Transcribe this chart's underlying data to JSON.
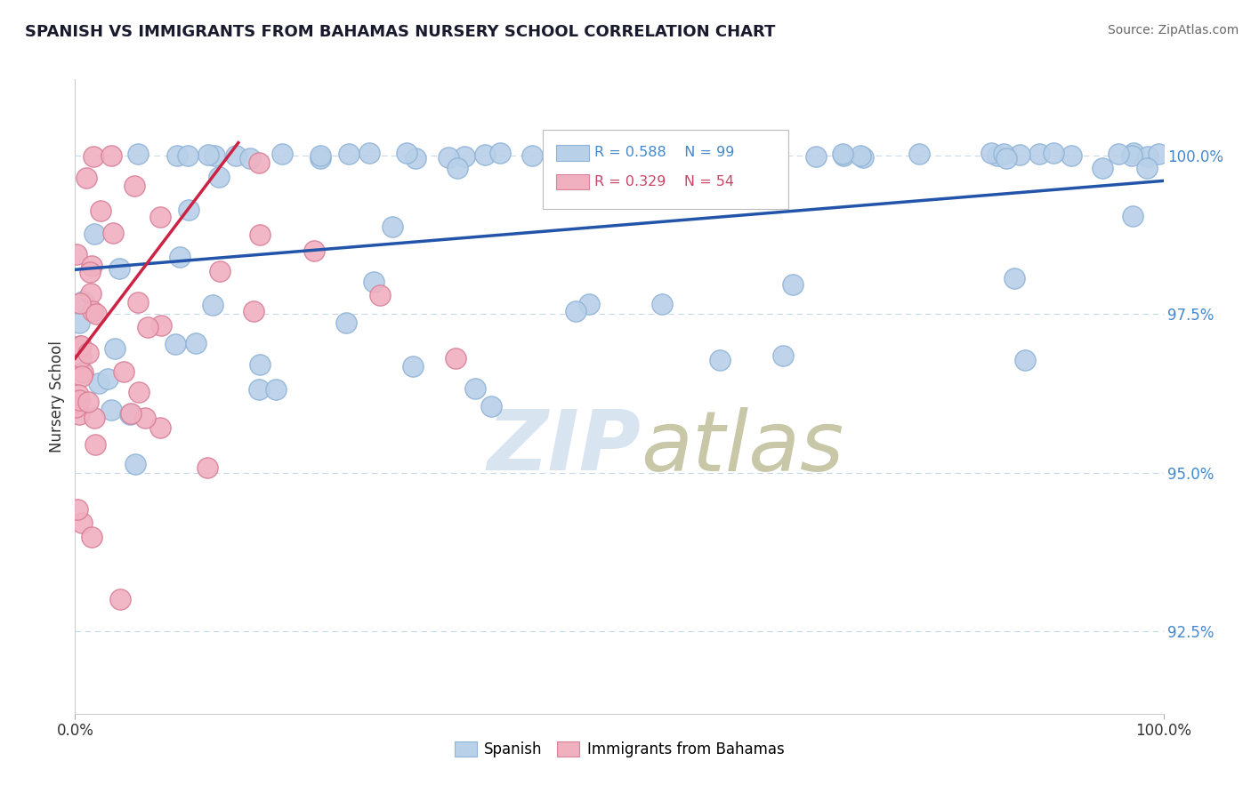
{
  "title": "SPANISH VS IMMIGRANTS FROM BAHAMAS NURSERY SCHOOL CORRELATION CHART",
  "source": "Source: ZipAtlas.com",
  "ylabel": "Nursery School",
  "yticks": [
    92.5,
    95.0,
    97.5,
    100.0
  ],
  "ytick_labels": [
    "92.5%",
    "95.0%",
    "97.5%",
    "100.0%"
  ],
  "xmin": 0.0,
  "xmax": 100.0,
  "ymin": 91.2,
  "ymax": 101.2,
  "blue_R": 0.588,
  "blue_N": 99,
  "pink_R": 0.329,
  "pink_N": 54,
  "blue_color": "#b8d0e8",
  "blue_edge": "#90b4d8",
  "pink_color": "#f0b0c0",
  "pink_edge": "#d88098",
  "trendline_blue": "#2255aa",
  "trendline_pink": "#cc2244",
  "watermark_color": "#d8e4f0",
  "background_color": "#ffffff",
  "grid_color": "#c8d8e8",
  "title_color": "#1a1a2e",
  "tick_color": "#4488cc"
}
